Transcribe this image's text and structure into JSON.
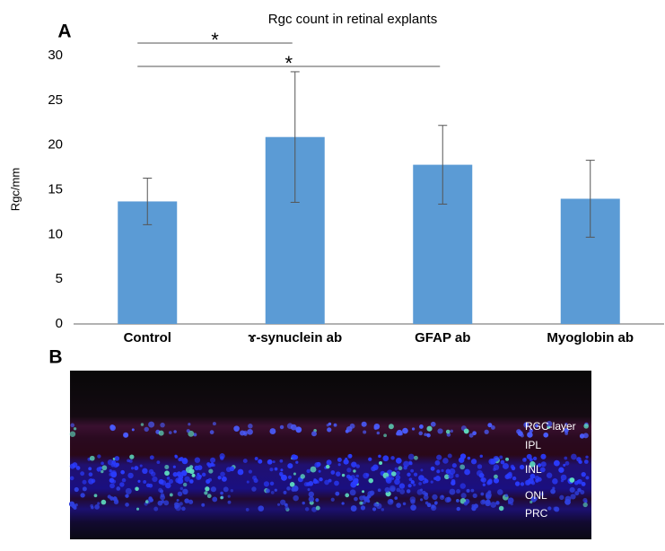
{
  "chart_data": {
    "type": "bar",
    "title": "Rgc count in retinal explants",
    "y_label": "Rgc/mm",
    "categories": [
      "Control",
      "ɤ-synuclein ab",
      "GFAP ab",
      "Myoglobin ab"
    ],
    "values": [
      13.7,
      20.9,
      17.8,
      14.0
    ],
    "errors": [
      2.6,
      7.3,
      4.4,
      4.3
    ],
    "color": "#5b9bd5",
    "ylim": [
      0,
      30
    ],
    "yticks": [
      0,
      5,
      10,
      15,
      20,
      25,
      30
    ],
    "grid": false,
    "annotations": [
      {
        "text": "*",
        "from": 0,
        "to": 1
      },
      {
        "text": "*",
        "from": 0,
        "to": 2
      }
    ]
  },
  "panels": [
    "A",
    "B"
  ],
  "image_labels": [
    "RGC-layer",
    "IPL",
    "INL",
    "ONL",
    "PRC"
  ]
}
